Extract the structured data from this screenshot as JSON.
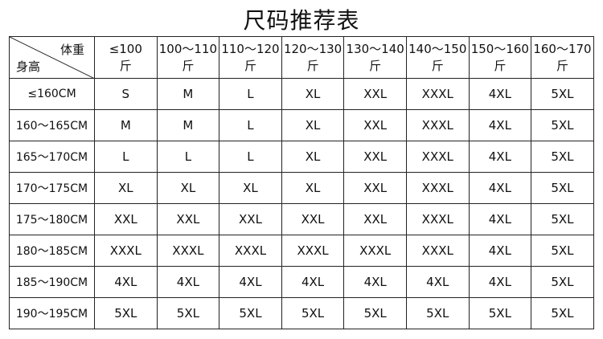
{
  "title": "尺码推荐表",
  "corner": {
    "weight_label": "体重",
    "height_label": "身高"
  },
  "columns": [
    {
      "range": "≤100",
      "unit": "斤"
    },
    {
      "range": "100～110",
      "unit": "斤"
    },
    {
      "range": "110～120",
      "unit": "斤"
    },
    {
      "range": "120～130",
      "unit": "斤"
    },
    {
      "range": "130～140",
      "unit": "斤"
    },
    {
      "range": "140～150",
      "unit": "斤"
    },
    {
      "range": "150～160",
      "unit": "斤"
    },
    {
      "range": "160～170",
      "unit": "斤"
    }
  ],
  "rows": [
    {
      "height": "≤160CM",
      "sizes": [
        "S",
        "M",
        "L",
        "XL",
        "XXL",
        "XXXL",
        "4XL",
        "5XL"
      ]
    },
    {
      "height": "160～165CM",
      "sizes": [
        "M",
        "M",
        "L",
        "XL",
        "XXL",
        "XXXL",
        "4XL",
        "5XL"
      ]
    },
    {
      "height": "165～170CM",
      "sizes": [
        "L",
        "L",
        "L",
        "XL",
        "XXL",
        "XXXL",
        "4XL",
        "5XL"
      ]
    },
    {
      "height": "170～175CM",
      "sizes": [
        "XL",
        "XL",
        "XL",
        "XL",
        "XXL",
        "XXXL",
        "4XL",
        "5XL"
      ]
    },
    {
      "height": "175～180CM",
      "sizes": [
        "XXL",
        "XXL",
        "XXL",
        "XXL",
        "XXL",
        "XXXL",
        "4XL",
        "5XL"
      ]
    },
    {
      "height": "180～185CM",
      "sizes": [
        "XXXL",
        "XXXL",
        "XXXL",
        "XXXL",
        "XXXL",
        "XXXL",
        "4XL",
        "5XL"
      ]
    },
    {
      "height": "185～190CM",
      "sizes": [
        "4XL",
        "4XL",
        "4XL",
        "4XL",
        "4XL",
        "4XL",
        "4XL",
        "5XL"
      ]
    },
    {
      "height": "190～195CM",
      "sizes": [
        "5XL",
        "5XL",
        "5XL",
        "5XL",
        "5XL",
        "5XL",
        "5XL",
        "5XL"
      ]
    }
  ]
}
